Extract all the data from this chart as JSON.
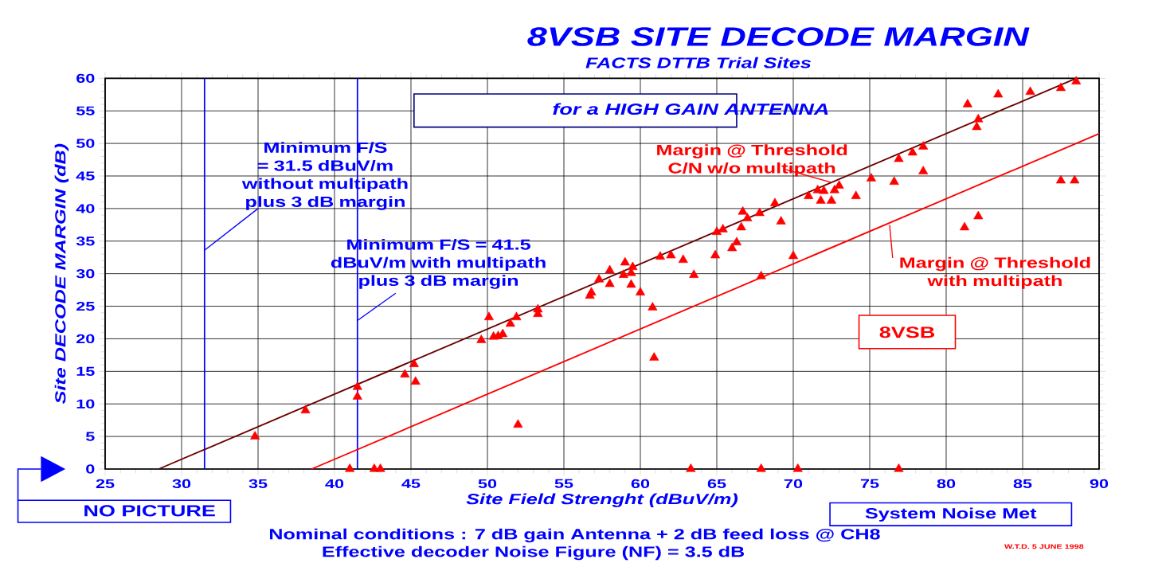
{
  "chart_data": {
    "type": "scatter",
    "title": "8VSB SITE DECODE MARGIN",
    "subtitle": "FACTS DTTB Trial Sites",
    "xlabel": "Site Field Strenght (dBuV/m)",
    "ylabel": "Site DECODE MARGIN (dB)",
    "xlim": [
      25,
      90
    ],
    "ylim": [
      0,
      60
    ],
    "xticks": [
      25,
      30,
      35,
      40,
      45,
      50,
      55,
      60,
      65,
      70,
      75,
      80,
      85,
      90
    ],
    "yticks": [
      0,
      5,
      10,
      15,
      20,
      25,
      30,
      35,
      40,
      45,
      50,
      55,
      60
    ],
    "grid": true,
    "series": [
      {
        "color": "#ff0000",
        "marker": "triangle",
        "x": [
          34.8,
          38.1,
          41.5,
          41.5,
          41.0,
          42.6,
          43.0,
          44.6,
          45.2,
          45.3,
          49.6,
          50.1,
          50.4,
          50.7,
          51.0,
          51.5,
          51.9,
          52.0,
          53.3,
          53.3,
          56.7,
          56.8,
          57.3,
          58.0,
          58.0,
          58.9,
          59.0,
          59.5,
          59.4,
          59.4,
          60.0,
          60.8,
          60.9,
          61.3,
          62.0,
          62.8,
          63.5,
          63.3,
          64.9,
          66.0,
          66.3,
          65.0,
          65.4,
          66.6,
          66.7,
          67.0,
          67.8,
          68.8,
          69.2,
          67.9,
          70.3,
          67.9,
          70.0,
          71.0,
          71.6,
          72.0,
          71.8,
          72.5,
          72.7,
          73.0,
          74.1,
          75.1,
          76.6,
          76.9,
          77.8,
          78.5,
          78.5,
          76.9,
          81.2,
          82.1,
          81.4,
          82.1,
          82.0,
          83.4,
          85.5,
          87.5,
          88.5,
          87.5,
          88.4
        ],
        "values": [
          5.0,
          9.0,
          12.6,
          11.1,
          0,
          0,
          0,
          14.5,
          16.1,
          13.4,
          19.8,
          23.3,
          20.3,
          20.4,
          20.7,
          22.3,
          23.3,
          6.8,
          23.8,
          24.5,
          26.6,
          27.1,
          29.1,
          30.5,
          28.4,
          29.8,
          31.7,
          31.0,
          30.1,
          28.3,
          27.1,
          24.8,
          17.1,
          32.6,
          32.8,
          32.1,
          29.8,
          0,
          32.8,
          33.9,
          34.8,
          36.4,
          36.8,
          37.1,
          39.5,
          38.5,
          39.3,
          40.8,
          38.0,
          0,
          0,
          29.6,
          32.7,
          41.9,
          42.8,
          42.7,
          41.2,
          41.2,
          42.8,
          43.5,
          41.9,
          44.6,
          44.1,
          47.6,
          48.6,
          49.5,
          45.7,
          0,
          37.1,
          38.8,
          56.0,
          53.7,
          52.5,
          57.5,
          57.9,
          58.5,
          59.5,
          44.3,
          44.3
        ]
      },
      {
        "type": "line",
        "name": "Margin @ Threshold C/N w/o multipath",
        "color": "#6b0000",
        "x": [
          28.5,
          88.5
        ],
        "values": [
          0,
          60
        ]
      },
      {
        "type": "line",
        "name": "Margin @ Threshold with multipath",
        "color": "#ff0000",
        "x": [
          38.5,
          90
        ],
        "values": [
          0,
          51.5
        ]
      }
    ],
    "ref_lines": [
      {
        "axis": "x",
        "value": 31.5,
        "label": "Minimum F/S = 31.5 dBuV/m without multipath plus 3 dB margin",
        "color": "#0000ff"
      },
      {
        "axis": "x",
        "value": 41.5,
        "label": "Minimum F/S = 41.5 dBuV/m with multipath plus 3 dB margin",
        "color": "#0000ff"
      }
    ],
    "annotations": [
      "for a HIGH GAIN ANTENNA",
      "8VSB",
      "NO PICTURE",
      "Nominal conditions :   7 dB gain Antenna + 2 dB feed loss @ CH8",
      "Effective decoder  Noise Figure (NF) = 3.5 dB",
      "System Noise Met",
      "W.T.D. 5 JUNE 1998"
    ]
  }
}
